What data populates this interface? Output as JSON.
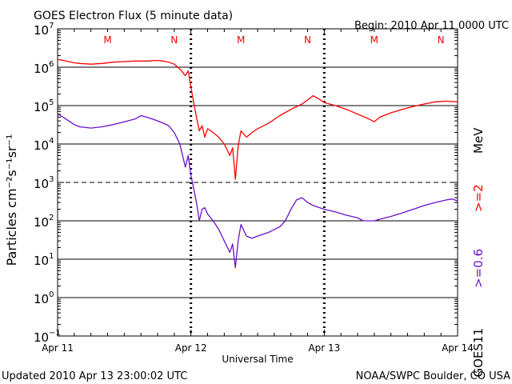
{
  "chart_data": {
    "type": "line",
    "title": "GOES Electron Flux (5 minute data)",
    "begin_label": "Begin: 2010 Apr 11 0000 UTC",
    "xlabel": "Universal Time",
    "ylabel": "Particles cm⁻²s⁻¹sr⁻¹",
    "y_scale": "log",
    "ylim_exp": [
      -1,
      7
    ],
    "x_unit": "hours since 2010 Apr 11 00:00 UTC",
    "xlim": [
      0,
      72
    ],
    "x_ticks": [
      {
        "x": 0,
        "label": "Apr 11"
      },
      {
        "x": 24,
        "label": "Apr 12"
      },
      {
        "x": 48,
        "label": "Apr 13"
      },
      {
        "x": 72,
        "label": "Apr 14"
      }
    ],
    "y_ticks": [
      {
        "base": "10",
        "exp": "7"
      },
      {
        "base": "10",
        "exp": "6"
      },
      {
        "base": "10",
        "exp": "5"
      },
      {
        "base": "10",
        "exp": "4"
      },
      {
        "base": "10",
        "exp": "3"
      },
      {
        "base": "10",
        "exp": "2"
      },
      {
        "base": "10",
        "exp": "1"
      },
      {
        "base": "10",
        "exp": "0"
      },
      {
        "base": "10",
        "exp": "−1"
      }
    ],
    "dashed_threshold_exp": 3,
    "mn_markers": [
      {
        "x": 9,
        "label": "M"
      },
      {
        "x": 21,
        "label": "N"
      },
      {
        "x": 33,
        "label": "M"
      },
      {
        "x": 45,
        "label": "N"
      },
      {
        "x": 57,
        "label": "M"
      },
      {
        "x": 69,
        "label": "N"
      }
    ],
    "series": [
      {
        "name": ">=2",
        "color": "#ff0000",
        "points": [
          [
            0,
            1600000.0
          ],
          [
            1,
            1500000.0
          ],
          [
            2,
            1400000.0
          ],
          [
            3,
            1300000.0
          ],
          [
            4,
            1250000.0
          ],
          [
            6,
            1200000.0
          ],
          [
            8,
            1250000.0
          ],
          [
            10,
            1350000.0
          ],
          [
            12,
            1400000.0
          ],
          [
            14,
            1450000.0
          ],
          [
            16,
            1450000.0
          ],
          [
            18,
            1500000.0
          ],
          [
            19,
            1450000.0
          ],
          [
            20,
            1350000.0
          ],
          [
            21,
            1200000.0
          ],
          [
            22,
            900000.0
          ],
          [
            23,
            600000.0
          ],
          [
            23.5,
            800000.0
          ],
          [
            24,
            300000.0
          ],
          [
            24.5,
            120000.0
          ],
          [
            25,
            50000.0
          ],
          [
            25.5,
            22000.0
          ],
          [
            26,
            30000.0
          ],
          [
            26.5,
            15000.0
          ],
          [
            27,
            25000.0
          ],
          [
            28,
            20000.0
          ],
          [
            29,
            15000.0
          ],
          [
            30,
            10000.0
          ],
          [
            31,
            5000.0
          ],
          [
            31.5,
            8000.0
          ],
          [
            32,
            1200.0
          ],
          [
            32.5,
            9000.0
          ],
          [
            33,
            22000.0
          ],
          [
            34,
            15000.0
          ],
          [
            35,
            20000.0
          ],
          [
            36,
            25000.0
          ],
          [
            38,
            35000.0
          ],
          [
            40,
            55000.0
          ],
          [
            42,
            80000.0
          ],
          [
            44,
            110000.0
          ],
          [
            45,
            140000.0
          ],
          [
            46,
            180000.0
          ],
          [
            47,
            150000.0
          ],
          [
            48,
            120000.0
          ],
          [
            50,
            100000.0
          ],
          [
            52,
            80000.0
          ],
          [
            54,
            60000.0
          ],
          [
            56,
            45000.0
          ],
          [
            57,
            38000.0
          ],
          [
            58,
            50000.0
          ],
          [
            60,
            65000.0
          ],
          [
            62,
            80000.0
          ],
          [
            64,
            95000.0
          ],
          [
            66,
            110000.0
          ],
          [
            68,
            125000.0
          ],
          [
            70,
            130000.0
          ],
          [
            72,
            125000.0
          ]
        ]
      },
      {
        "name": ">=0.6",
        "color": "#6a10c8",
        "points": [
          [
            0,
            60000.0
          ],
          [
            1,
            50000.0
          ],
          [
            2,
            40000.0
          ],
          [
            3,
            32000.0
          ],
          [
            4,
            28000.0
          ],
          [
            6,
            26000.0
          ],
          [
            8,
            28000.0
          ],
          [
            10,
            32000.0
          ],
          [
            12,
            38000.0
          ],
          [
            14,
            45000.0
          ],
          [
            15,
            55000.0
          ],
          [
            16,
            50000.0
          ],
          [
            17,
            45000.0
          ],
          [
            18,
            40000.0
          ],
          [
            19,
            35000.0
          ],
          [
            20,
            30000.0
          ],
          [
            21,
            20000.0
          ],
          [
            22,
            10000.0
          ],
          [
            23,
            2500.0
          ],
          [
            23.5,
            5000.0
          ],
          [
            24,
            1500.0
          ],
          [
            24.5,
            700.0
          ],
          [
            25,
            300.0
          ],
          [
            25.5,
            100.0
          ],
          [
            26,
            200.0
          ],
          [
            26.5,
            220.0
          ],
          [
            27,
            150.0
          ],
          [
            28,
            100.0
          ],
          [
            29,
            60.0
          ],
          [
            30,
            30.0
          ],
          [
            31,
            15.0
          ],
          [
            31.5,
            25.0
          ],
          [
            32,
            6.0
          ],
          [
            32.5,
            30.0
          ],
          [
            33,
            80.0
          ],
          [
            34,
            40.0
          ],
          [
            35,
            35.0
          ],
          [
            36,
            40.0
          ],
          [
            38,
            50.0
          ],
          [
            40,
            70.0
          ],
          [
            41,
            100.0
          ],
          [
            42,
            200.0
          ],
          [
            43,
            350.0
          ],
          [
            44,
            400.0
          ],
          [
            45,
            300.0
          ],
          [
            46,
            250.0
          ],
          [
            48,
            200.0
          ],
          [
            50,
            170.0
          ],
          [
            52,
            140.0
          ],
          [
            54,
            120.0
          ],
          [
            55,
            100.0
          ],
          [
            56,
            100.0
          ],
          [
            57,
            100.0
          ],
          [
            58,
            110.0
          ],
          [
            60,
            130.0
          ],
          [
            62,
            160.0
          ],
          [
            64,
            200.0
          ],
          [
            66,
            250.0
          ],
          [
            68,
            300.0
          ],
          [
            70,
            350.0
          ],
          [
            71,
            370.0
          ],
          [
            72,
            330.0
          ]
        ]
      }
    ],
    "legend": {
      "label_high": ">=2",
      "label_low": ">=0.6",
      "unit": "MeV",
      "satellite": "GOES11"
    },
    "footer_left": "Updated 2010 Apr 13 23:00:02 UTC",
    "footer_right": "NOAA/SWPC Boulder, CO USA"
  }
}
